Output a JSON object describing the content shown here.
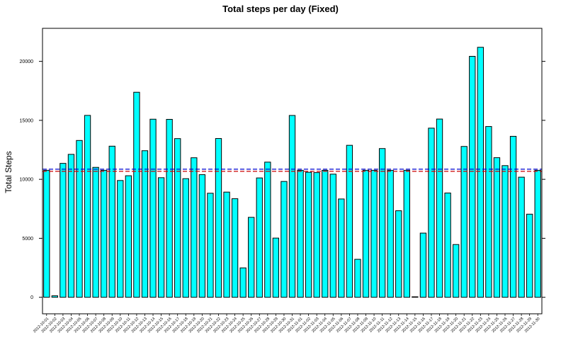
{
  "chart_data": {
    "type": "bar",
    "title": "Total steps per day (Fixed)",
    "xlabel": "",
    "ylabel": "Total Steps",
    "ylim": [
      -1400,
      22800
    ],
    "yticks": [
      0,
      5000,
      10000,
      15000,
      20000
    ],
    "colors": {
      "bar_fill": "#00FFFF",
      "bar_stroke": "#000000",
      "mean_line": "#0000CC",
      "median_line": "#CC0000"
    },
    "reference_lines": {
      "mean": 10766.19,
      "median": 10766.19,
      "style": "dashed"
    },
    "grid": false,
    "categories": [
      "2012-10-01",
      "2012-10-02",
      "2012-10-03",
      "2012-10-04",
      "2012-10-05",
      "2012-10-06",
      "2012-10-07",
      "2012-10-08",
      "2012-10-09",
      "2012-10-10",
      "2012-10-11",
      "2012-10-12",
      "2012-10-13",
      "2012-10-14",
      "2012-10-15",
      "2012-10-16",
      "2012-10-17",
      "2012-10-18",
      "2012-10-19",
      "2012-10-20",
      "2012-10-21",
      "2012-10-22",
      "2012-10-23",
      "2012-10-24",
      "2012-10-25",
      "2012-10-26",
      "2012-10-27",
      "2012-10-28",
      "2012-10-29",
      "2012-10-30",
      "2012-10-31",
      "2012-11-01",
      "2012-11-02",
      "2012-11-03",
      "2012-11-04",
      "2012-11-05",
      "2012-11-06",
      "2012-11-07",
      "2012-11-08",
      "2012-11-09",
      "2012-11-10",
      "2012-11-11",
      "2012-11-12",
      "2012-11-13",
      "2012-11-14",
      "2012-11-15",
      "2012-11-16",
      "2012-11-17",
      "2012-11-18",
      "2012-11-19",
      "2012-11-20",
      "2012-11-21",
      "2012-11-22",
      "2012-11-23",
      "2012-11-24",
      "2012-11-25",
      "2012-11-26",
      "2012-11-27",
      "2012-11-28",
      "2012-11-29",
      "2012-11-30"
    ],
    "values": [
      10766,
      126,
      11352,
      12116,
      13294,
      15420,
      11015,
      10766,
      12811,
      9900,
      10304,
      17382,
      12426,
      15098,
      10139,
      15084,
      13452,
      10056,
      11829,
      10395,
      8821,
      13460,
      8918,
      8355,
      2492,
      6778,
      10119,
      11458,
      5018,
      9819,
      15414,
      10766,
      10600,
      10571,
      10766,
      10439,
      8334,
      12883,
      3219,
      10766,
      10766,
      12608,
      10765,
      7336,
      10766,
      41,
      5441,
      14339,
      15110,
      8841,
      4472,
      12787,
      20427,
      21194,
      14478,
      11834,
      11162,
      13646,
      10183,
      7047,
      10766
    ]
  }
}
